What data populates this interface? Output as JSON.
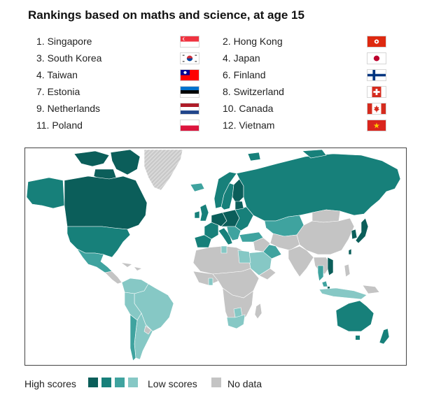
{
  "title": "Rankings based on maths and science, at age 15",
  "rankings": [
    {
      "label": "1. Singapore",
      "flag": "singapore-flag"
    },
    {
      "label": "2. Hong Kong",
      "flag": "hong-kong-flag"
    },
    {
      "label": "3. South Korea",
      "flag": "south-korea-flag"
    },
    {
      "label": "4. Japan",
      "flag": "japan-flag"
    },
    {
      "label": "4. Taiwan",
      "flag": "taiwan-flag"
    },
    {
      "label": "6. Finland",
      "flag": "finland-flag"
    },
    {
      "label": "7. Estonia",
      "flag": "estonia-flag"
    },
    {
      "label": "8. Switzerland",
      "flag": "switzerland-flag"
    },
    {
      "label": "9. Netherlands",
      "flag": "netherlands-flag"
    },
    {
      "label": "10. Canada",
      "flag": "canada-flag"
    },
    {
      "label": "11. Poland",
      "flag": "poland-flag"
    },
    {
      "label": "12. Vietnam",
      "flag": "vietnam-flag"
    }
  ],
  "colors": {
    "tier1": "#0b5e5a",
    "tier2": "#17807a",
    "tier3": "#3fa39f",
    "tier4": "#86c8c5",
    "no_data": "#c4c4c4",
    "frame": "#444444"
  },
  "legend": {
    "high_label": "High scores",
    "low_label": "Low scores",
    "no_data_label": "No data"
  }
}
